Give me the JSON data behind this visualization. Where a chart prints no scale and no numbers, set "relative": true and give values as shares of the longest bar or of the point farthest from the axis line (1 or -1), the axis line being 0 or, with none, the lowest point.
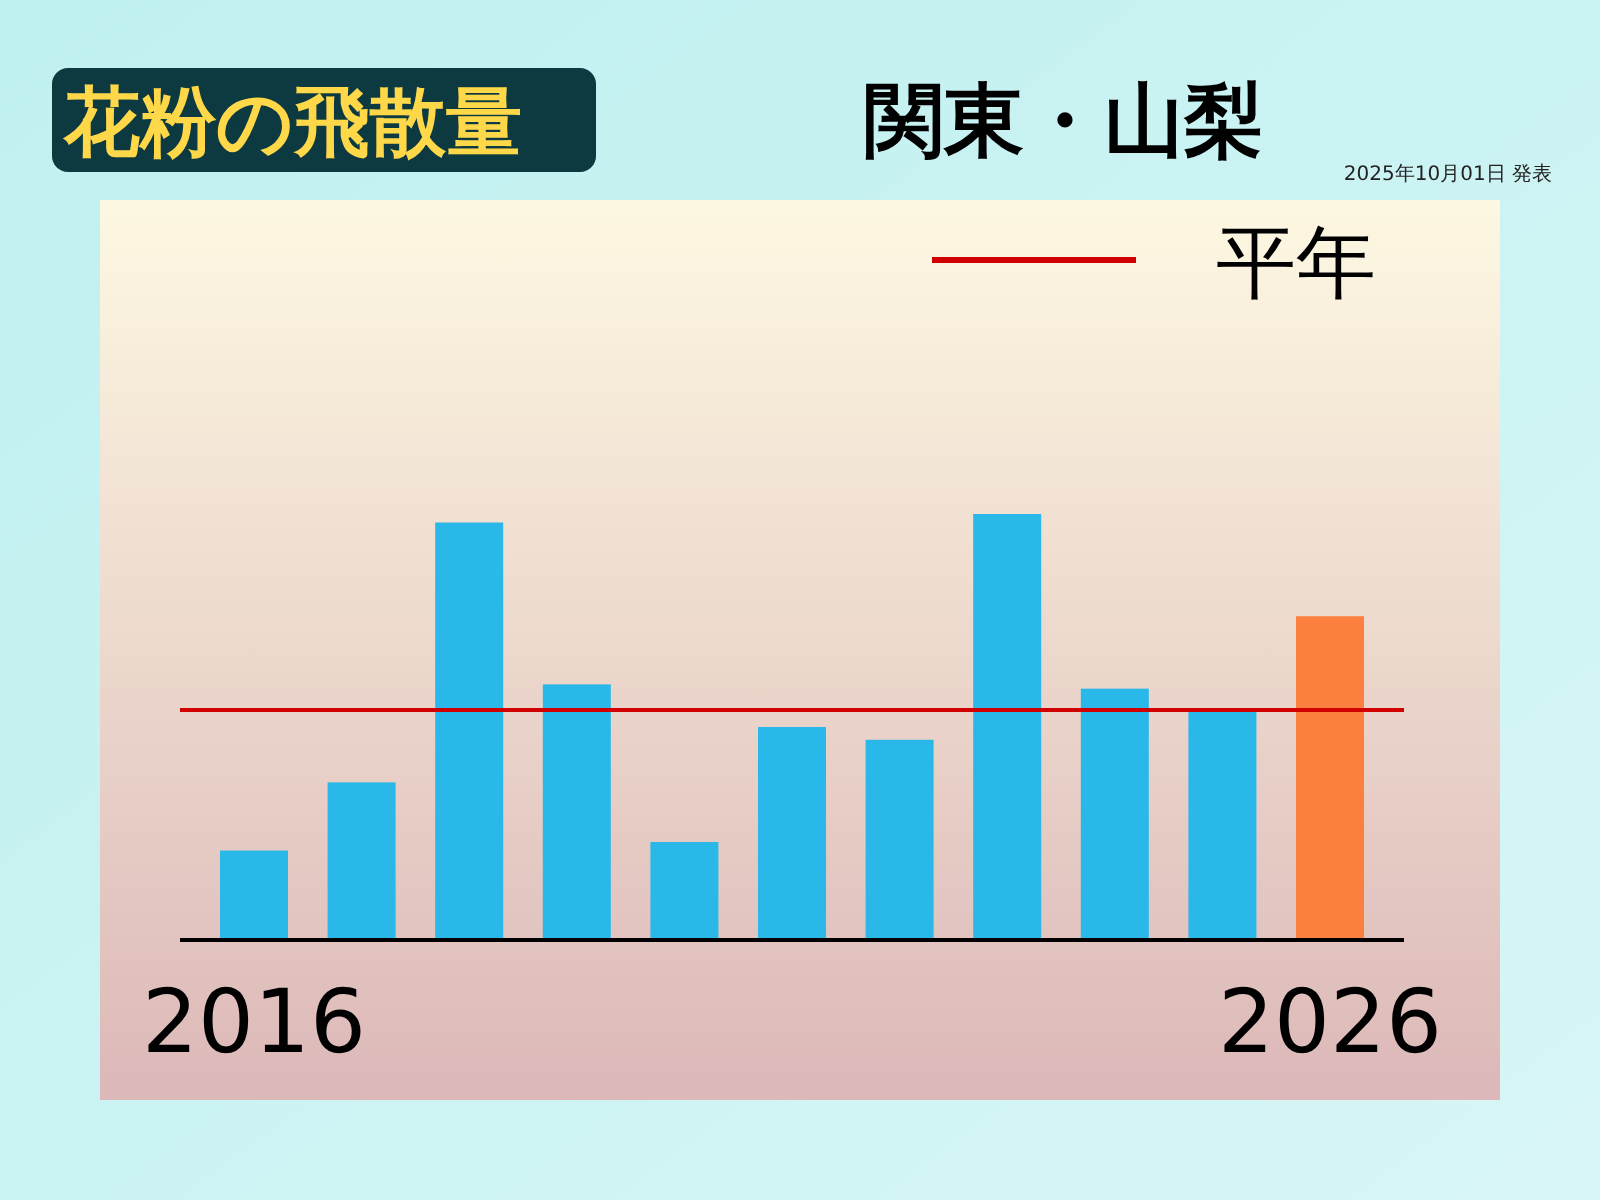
{
  "chart_data": {
    "type": "bar",
    "title": "花粉の飛散量",
    "subtitle": "関東・山梨",
    "annotations": [
      "2025年10月01日 発表"
    ],
    "categories": [
      "2016",
      null,
      null,
      null,
      null,
      null,
      null,
      null,
      null,
      null,
      "2026"
    ],
    "relative": true,
    "values": [
      0.21,
      0.37,
      0.98,
      0.6,
      0.23,
      0.5,
      0.47,
      1,
      0.59,
      0.54,
      0.76
    ],
    "colors": [
      "#2ab8e8",
      "#2ab8e8",
      "#2ab8e8",
      "#2ab8e8",
      "#2ab8e8",
      "#2ab8e8",
      "#2ab8e8",
      "#2ab8e8",
      "#2ab8e8",
      "#2ab8e8",
      "#fb8040"
    ],
    "ref_lines": [
      {
        "axis": "y",
        "value": 0.54,
        "label": "平年",
        "color": "#d00000"
      }
    ]
  }
}
